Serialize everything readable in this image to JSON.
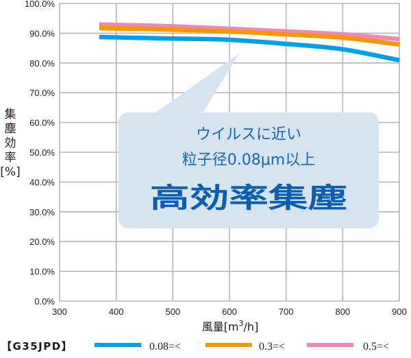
{
  "chart_data": {
    "type": "line",
    "title": "",
    "model": "【G35JPD】",
    "xlabel": "風量[m³/h]",
    "xlabel_parts": {
      "main": "風量[m",
      "sup": "3",
      "tail": "/h]"
    },
    "ylabel": "集塵効率[%]",
    "ylabel_chars": [
      "集",
      "塵",
      "効",
      "率",
      "[%]"
    ],
    "xlim": [
      300,
      900
    ],
    "ylim": [
      0,
      100
    ],
    "x_ticks": [
      "300",
      "400",
      "500",
      "600",
      "700",
      "800",
      "900"
    ],
    "y_ticks": [
      "0.0%",
      "10.0%",
      "20.0%",
      "30.0%",
      "40.0%",
      "50.0%",
      "60.0%",
      "70.0%",
      "80.0%",
      "90.0%",
      "100.0%"
    ],
    "grid": true,
    "legend_position": "bottom",
    "x": [
      370,
      400,
      500,
      600,
      700,
      800,
      900
    ],
    "series": [
      {
        "name": "0.08=<",
        "color": "#00a0e9",
        "values": [
          88.7,
          88.6,
          88.2,
          87.8,
          86.4,
          84.6,
          80.9
        ]
      },
      {
        "name": "0.3=<",
        "color": "#f39800",
        "values": [
          91.7,
          91.6,
          91.2,
          90.6,
          89.6,
          88.5,
          86.2
        ]
      },
      {
        "name": "0.5=<",
        "color": "#f088b6",
        "values": [
          92.9,
          92.8,
          92.3,
          91.5,
          90.6,
          89.6,
          88.0
        ]
      }
    ],
    "annotations": [
      {
        "type": "callout",
        "lines": [
          "ウイルスに近い",
          "粒子径0.08μm以上",
          "高効率集塵"
        ],
        "fill": "#d5e4ee",
        "text_color": "#0c5eb3"
      }
    ]
  },
  "legend": {
    "model": "【G35JPD】",
    "items": [
      {
        "label": "0.08=<",
        "color": "#00a0e9"
      },
      {
        "label": "0.3=<",
        "color": "#f39800"
      },
      {
        "label": "0.5=<",
        "color": "#f088b6"
      }
    ]
  },
  "callout": {
    "line1": "ウイルスに近い",
    "line2": "粒子径0.08μm以上",
    "line3": "高効率集塵"
  }
}
